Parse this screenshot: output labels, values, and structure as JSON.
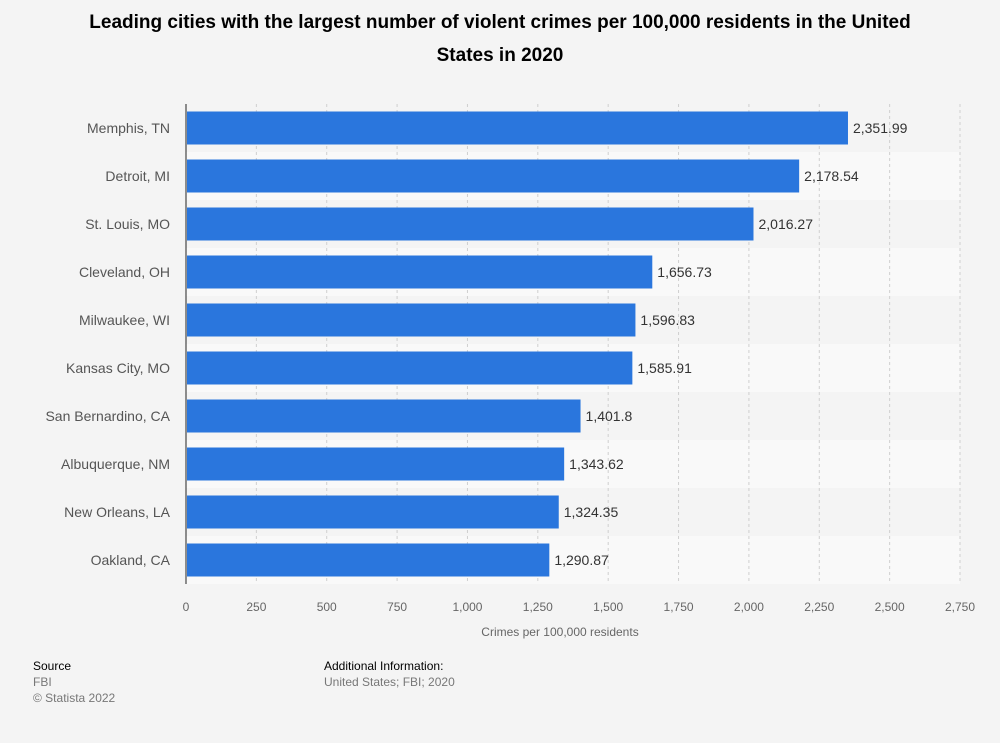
{
  "chart_data": {
    "type": "bar",
    "orientation": "horizontal",
    "title": "Leading cities with the largest number of violent crimes per 100,000 residents in the United States in 2020",
    "categories": [
      "Memphis, TN",
      "Detroit, MI",
      "St. Louis, MO",
      "Cleveland, OH",
      "Milwaukee, WI",
      "Kansas City, MO",
      "San Bernardino, CA",
      "Albuquerque, NM",
      "New Orleans, LA",
      "Oakland, CA"
    ],
    "values": [
      2351.99,
      2178.54,
      2016.27,
      1656.73,
      1596.83,
      1585.91,
      1401.8,
      1343.62,
      1324.35,
      1290.87
    ],
    "value_labels": [
      "2,351.99",
      "2,178.54",
      "2,016.27",
      "1,656.73",
      "1,596.83",
      "1,585.91",
      "1,401.8",
      "1,343.62",
      "1,324.35",
      "1,290.87"
    ],
    "xlabel": "Crimes per 100,000 residents",
    "ylabel": "",
    "xlim": [
      0,
      2750
    ],
    "xticks": [
      0,
      250,
      500,
      750,
      1000,
      1250,
      1500,
      1750,
      2000,
      2250,
      2500,
      2750
    ],
    "xtick_labels": [
      "0",
      "250",
      "500",
      "750",
      "1,000",
      "1,250",
      "1,500",
      "1,750",
      "2,000",
      "2,250",
      "2,500",
      "2,750"
    ],
    "grid": true,
    "bar_color": "#2a76dd"
  },
  "footer": {
    "source_heading": "Source",
    "source_name": "FBI",
    "copyright": "© Statista 2022",
    "info_heading": "Additional Information:",
    "info_text": "United States; FBI; 2020"
  }
}
